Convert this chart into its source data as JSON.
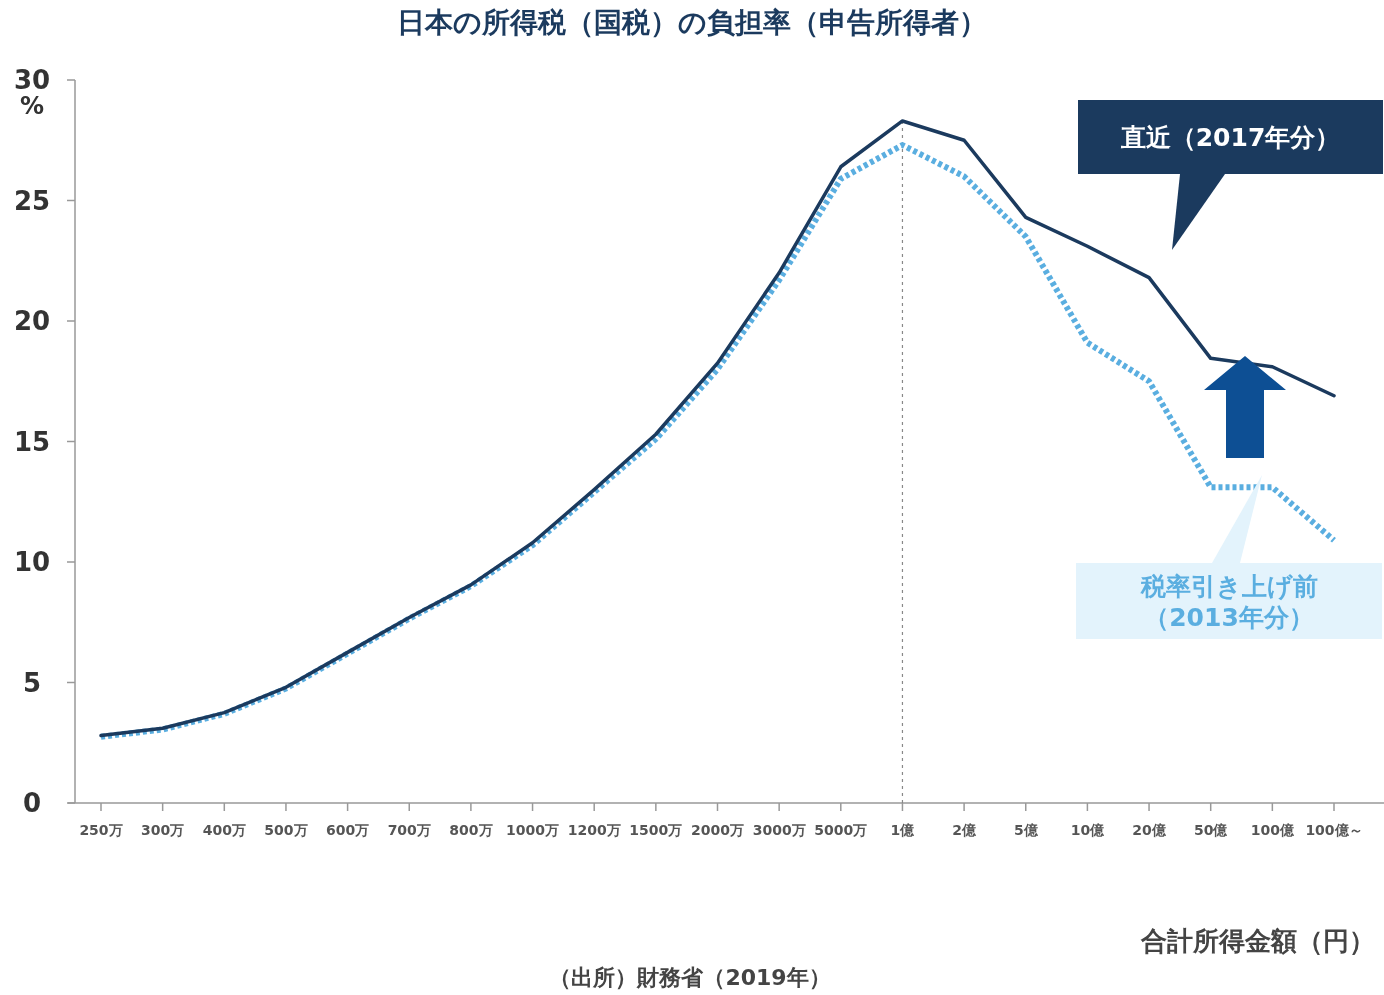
{
  "chart_data": {
    "type": "line",
    "title": "日本の所得税（国税）の負担率（申告所得者）",
    "xlabel": "合計所得金額（円）",
    "ylabel": "%",
    "categories": [
      "250万",
      "300万",
      "400万",
      "500万",
      "600万",
      "700万",
      "800万",
      "1000万",
      "1200万",
      "1500万",
      "2000万",
      "3000万",
      "5000万",
      "1億",
      "2億",
      "5億",
      "10億",
      "20億",
      "50億",
      "100億",
      "100億～"
    ],
    "series": [
      {
        "name": "直近（2017年分）",
        "color": "#1b3a5e",
        "line_style": "solid",
        "values": [
          2.8,
          3.1,
          3.75,
          4.8,
          6.25,
          7.7,
          9.05,
          10.8,
          13.0,
          15.3,
          18.25,
          22.0,
          26.4,
          28.3,
          27.5,
          24.3,
          23.1,
          21.8,
          18.45,
          18.1,
          16.9
        ]
      },
      {
        "name": "税率引き上げ前（2013年分）",
        "color": "#5aaee0",
        "line_style": "dotted",
        "values": [
          2.75,
          3.05,
          3.7,
          4.75,
          6.2,
          7.65,
          9.0,
          10.7,
          12.9,
          15.1,
          18.0,
          21.7,
          25.9,
          27.3,
          26.0,
          23.5,
          19.1,
          17.5,
          13.1,
          13.1,
          10.9
        ]
      }
    ],
    "ylim": [
      0,
      30
    ],
    "yticks": [
      0,
      5,
      10,
      15,
      20,
      25,
      30
    ],
    "grid": false,
    "ref_lines": [
      {
        "axis": "x",
        "value": "1億",
        "line_style": "dotted",
        "color": "#888888"
      }
    ],
    "annotations": [
      "（出所）財務省（2019年）"
    ]
  }
}
